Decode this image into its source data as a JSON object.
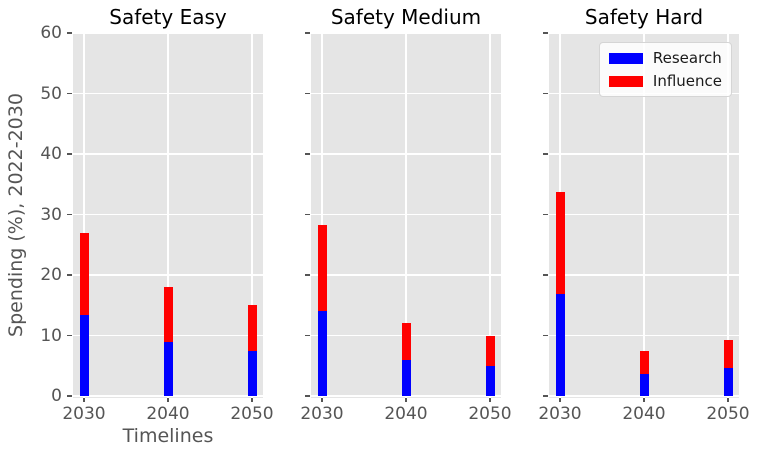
{
  "chart_data": {
    "type": "bar",
    "stacked": true,
    "categories": [
      "2030",
      "2040",
      "2050"
    ],
    "panels": [
      {
        "title": "Safety Easy",
        "series": [
          {
            "name": "Research",
            "color": "#0000ff",
            "values": [
              13.4,
              9.0,
              7.5
            ]
          },
          {
            "name": "Influence",
            "color": "#ff0000",
            "values": [
              13.5,
              9.0,
              7.5
            ]
          }
        ]
      },
      {
        "title": "Safety Medium",
        "series": [
          {
            "name": "Research",
            "color": "#0000ff",
            "values": [
              14.1,
              6.0,
              5.0
            ]
          },
          {
            "name": "Influence",
            "color": "#ff0000",
            "values": [
              14.2,
              6.1,
              5.0
            ]
          }
        ]
      },
      {
        "title": "Safety Hard",
        "series": [
          {
            "name": "Research",
            "color": "#0000ff",
            "values": [
              16.9,
              3.7,
              4.6
            ]
          },
          {
            "name": "Influence",
            "color": "#ff0000",
            "values": [
              16.8,
              3.7,
              4.7
            ]
          }
        ]
      }
    ],
    "xlabel": "Timelines",
    "ylabel": "Spending (%), 2022-2030",
    "ylim": [
      0,
      60
    ],
    "yticks": [
      "0",
      "10",
      "20",
      "30",
      "40",
      "50",
      "60"
    ],
    "grid": true,
    "legend": {
      "position": "upper-right-third-panel",
      "entries": [
        {
          "label": "Research",
          "color": "#0000ff"
        },
        {
          "label": "Influence",
          "color": "#ff0000"
        }
      ]
    },
    "style": {
      "plot_background": "#e5e5e5",
      "grid_color": "#ffffff",
      "tick_color": "#555555",
      "title_color": "#000000"
    }
  }
}
